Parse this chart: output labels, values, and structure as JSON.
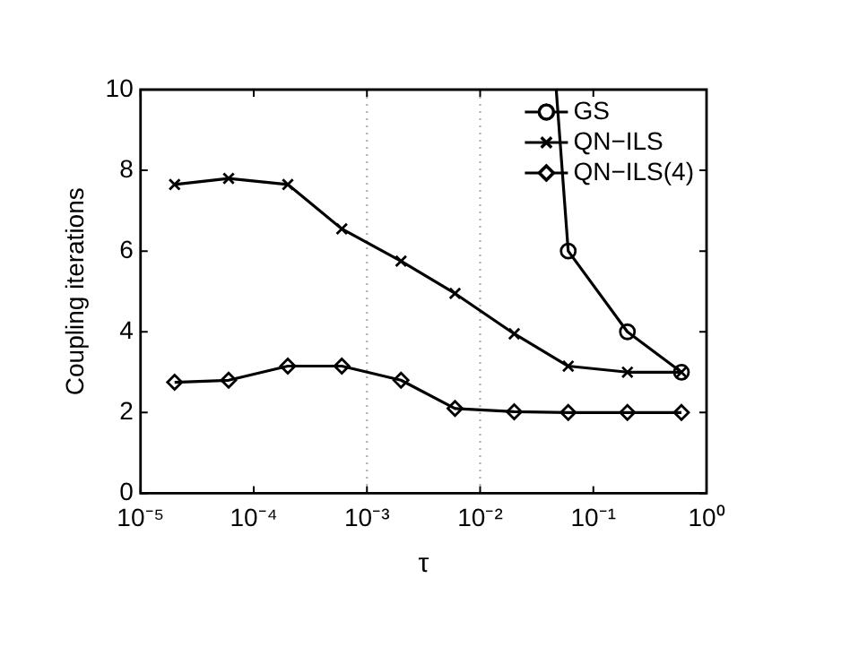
{
  "chart_data": {
    "type": "line",
    "xlabel": "τ",
    "ylabel": "Coupling iterations",
    "log": "x",
    "xlim": [
      1e-05,
      1
    ],
    "xticks": [
      {
        "value": 1e-05,
        "label": "10⁻⁵"
      },
      {
        "value": 0.0001,
        "label": "10⁻⁴"
      },
      {
        "value": 0.001,
        "label": "10⁻³"
      },
      {
        "value": 0.01,
        "label": "10⁻²"
      },
      {
        "value": 0.1,
        "label": "10⁻¹"
      },
      {
        "value": 1,
        "label": "10⁰"
      }
    ],
    "ylim": [
      0,
      10
    ],
    "yticks": [
      0,
      2,
      4,
      6,
      8,
      10
    ],
    "grid": false,
    "legend": "top right",
    "line_style": "solid",
    "ref_lines": [
      {
        "axis": "x",
        "value": 0.001,
        "color": "#aaaaaa",
        "line_style": "dotted"
      },
      {
        "axis": "x",
        "value": 0.01,
        "color": "#aaaaaa",
        "line_style": "dotted"
      }
    ],
    "series": [
      {
        "name": "GS",
        "color": "#000000",
        "marker": "circle",
        "x": [
          0.047,
          0.06,
          0.2,
          0.6
        ],
        "values": [
          10,
          6,
          4,
          3
        ]
      },
      {
        "name": "QN−ILS",
        "color": "#000000",
        "marker": "cross",
        "x": [
          2e-05,
          6e-05,
          0.0002,
          0.0006,
          0.002,
          0.006,
          0.02,
          0.06,
          0.2,
          0.6
        ],
        "values": [
          7.65,
          7.8,
          7.65,
          6.55,
          5.75,
          4.95,
          3.95,
          3.15,
          3.0,
          3.0
        ]
      },
      {
        "name": "QN−ILS(4)",
        "color": "#000000",
        "marker": "diamond",
        "x": [
          2e-05,
          6e-05,
          0.0002,
          0.0006,
          0.002,
          0.006,
          0.02,
          0.06,
          0.2,
          0.6
        ],
        "values": [
          2.75,
          2.8,
          3.15,
          3.15,
          2.8,
          2.1,
          2.02,
          2.0,
          2.0,
          2.0
        ]
      }
    ]
  }
}
